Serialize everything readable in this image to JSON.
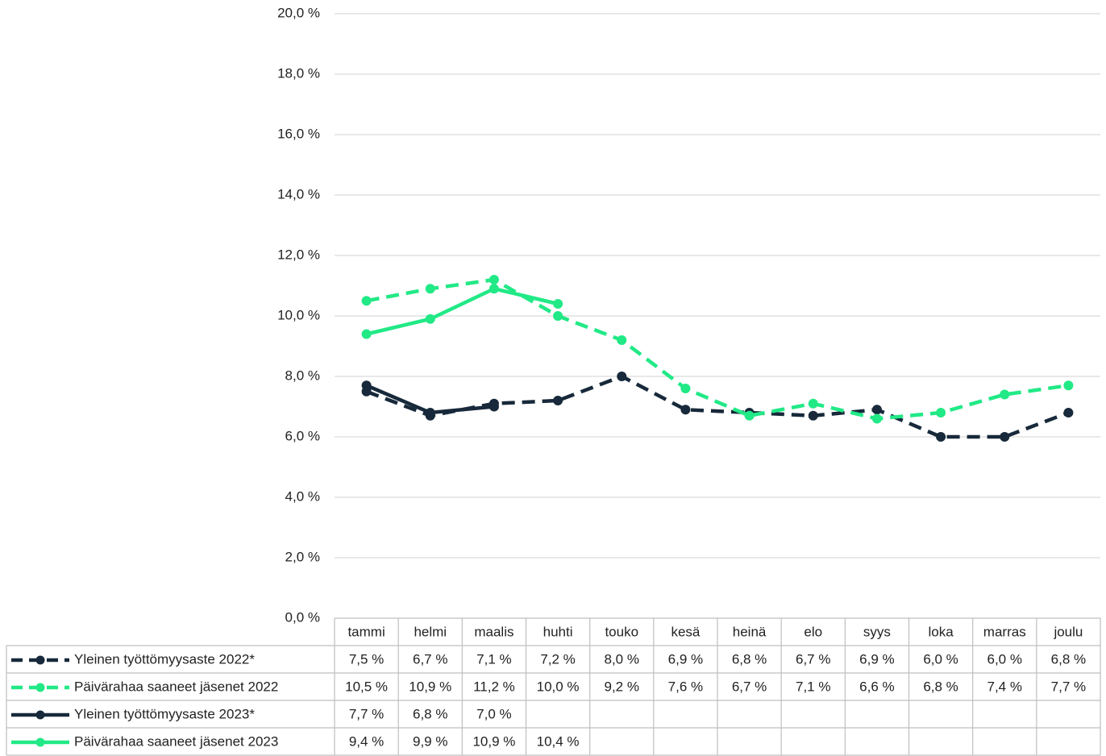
{
  "chart_data": {
    "type": "line",
    "categories": [
      "tammi",
      "helmi",
      "maalis",
      "huhti",
      "touko",
      "kesä",
      "heinä",
      "elo",
      "syys",
      "loka",
      "marras",
      "joulu"
    ],
    "ylim": [
      0,
      20
    ],
    "yticks": [
      {
        "value": 0,
        "label": "0,0 %"
      },
      {
        "value": 2,
        "label": "2,0 %"
      },
      {
        "value": 4,
        "label": "4,0 %"
      },
      {
        "value": 6,
        "label": "6,0 %"
      },
      {
        "value": 8,
        "label": "8,0 %"
      },
      {
        "value": 10,
        "label": "10,0 %"
      },
      {
        "value": 12,
        "label": "12,0 %"
      },
      {
        "value": 14,
        "label": "14,0 %"
      },
      {
        "value": 16,
        "label": "16,0 %"
      },
      {
        "value": 18,
        "label": "18,0 %"
      },
      {
        "value": 20,
        "label": "20,0 %"
      }
    ],
    "grid": true,
    "series": [
      {
        "name": "Yleinen työttömyysaste 2022*",
        "color": "#17293a",
        "dashed": true,
        "values": [
          7.5,
          6.7,
          7.1,
          7.2,
          8.0,
          6.9,
          6.8,
          6.7,
          6.9,
          6.0,
          6.0,
          6.8
        ],
        "value_labels": [
          "7,5 %",
          "6,7 %",
          "7,1 %",
          "7,2 %",
          "8,0 %",
          "6,9 %",
          "6,8 %",
          "6,7 %",
          "6,9 %",
          "6,0 %",
          "6,0 %",
          "6,8 %"
        ]
      },
      {
        "name": "Päivärahaa saaneet jäsenet 2022",
        "color": "#21e986",
        "dashed": true,
        "values": [
          10.5,
          10.9,
          11.2,
          10.0,
          9.2,
          7.6,
          6.7,
          7.1,
          6.6,
          6.8,
          7.4,
          7.7
        ],
        "value_labels": [
          "10,5 %",
          "10,9 %",
          "11,2 %",
          "10,0 %",
          "9,2 %",
          "7,6 %",
          "6,7 %",
          "7,1 %",
          "6,6 %",
          "6,8 %",
          "7,4 %",
          "7,7 %"
        ]
      },
      {
        "name": "Yleinen työttömyysaste 2023*",
        "color": "#17293a",
        "dashed": false,
        "values": [
          7.7,
          6.8,
          7.0,
          null,
          null,
          null,
          null,
          null,
          null,
          null,
          null,
          null
        ],
        "value_labels": [
          "7,7 %",
          "6,8 %",
          "7,0 %",
          null,
          null,
          null,
          null,
          null,
          null,
          null,
          null,
          null
        ]
      },
      {
        "name": "Päivärahaa saaneet jäsenet 2023",
        "color": "#21e986",
        "dashed": false,
        "values": [
          9.4,
          9.9,
          10.9,
          10.4,
          null,
          null,
          null,
          null,
          null,
          null,
          null,
          null
        ],
        "value_labels": [
          "9,4 %",
          "9,9 %",
          "10,9 %",
          "10,4 %",
          null,
          null,
          null,
          null,
          null,
          null,
          null,
          null
        ]
      }
    ]
  }
}
